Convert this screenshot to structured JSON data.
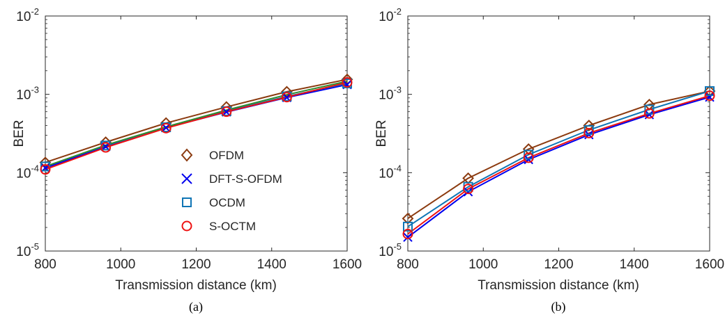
{
  "chart_data": [
    {
      "panel": "(a)",
      "type": "line",
      "xlabel": "Transmission distance (km)",
      "ylabel": "BER",
      "y_scale": "log",
      "xlim": [
        800,
        1600
      ],
      "ylim": [
        1e-05,
        0.01
      ],
      "x_ticks": [
        "800",
        "1000",
        "1200",
        "1400",
        "1600"
      ],
      "y_ticks": [
        "10^-5",
        "10^-4",
        "10^-3",
        "10^-2"
      ],
      "grid": false,
      "legend_position": "lower-right",
      "x": [
        800,
        960,
        1120,
        1280,
        1440,
        1600
      ],
      "series": [
        {
          "name": "OFDM",
          "marker": "diamond",
          "color": "#8B3A0F",
          "values": [
            0.000135,
            0.000245,
            0.00043,
            0.00069,
            0.00108,
            0.00155
          ]
        },
        {
          "name": "DFT-S-OFDM",
          "marker": "x",
          "color": "#0000EE",
          "values": [
            0.000115,
            0.000215,
            0.000375,
            0.000595,
            0.00091,
            0.00133
          ]
        },
        {
          "name": "OCDM",
          "marker": "square",
          "color": "#0F75B5",
          "values": [
            0.00012,
            0.000222,
            0.00038,
            0.00061,
            0.00094,
            0.00138
          ]
        },
        {
          "name": "S-OCTM",
          "marker": "circle",
          "color": "#EE1111",
          "values": [
            0.00011,
            0.00021,
            0.00037,
            0.0006,
            0.00092,
            0.00142
          ]
        },
        {
          "name": "",
          "marker": "none",
          "color": "#2E8B2E",
          "values": [
            0.00012,
            0.000225,
            0.000385,
            0.00063,
            0.00099,
            0.00147
          ]
        }
      ]
    },
    {
      "panel": "(b)",
      "type": "line",
      "xlabel": "Transmission distance (km)",
      "ylabel": "BER",
      "y_scale": "log",
      "xlim": [
        800,
        1600
      ],
      "ylim": [
        1e-05,
        0.01
      ],
      "x_ticks": [
        "800",
        "1000",
        "1200",
        "1400",
        "1600"
      ],
      "y_ticks": [
        "10^-5",
        "10^-4",
        "10^-3",
        "10^-2"
      ],
      "grid": false,
      "x": [
        800,
        960,
        1120,
        1280,
        1440,
        1600
      ],
      "series": [
        {
          "name": "OFDM",
          "marker": "diamond",
          "color": "#8B3A0F",
          "values": [
            2.6e-05,
            8.5e-05,
            0.0002,
            0.0004,
            0.00074,
            0.0011
          ]
        },
        {
          "name": "DFT-S-OFDM",
          "marker": "x",
          "color": "#0000EE",
          "values": [
            1.5e-05,
            5.7e-05,
            0.000147,
            0.000305,
            0.00055,
            0.00092
          ]
        },
        {
          "name": "OCDM",
          "marker": "square",
          "color": "#0F75B5",
          "values": [
            2.05e-05,
            6.6e-05,
            0.00017,
            0.00035,
            0.00064,
            0.0011
          ]
        },
        {
          "name": "S-OCTM",
          "marker": "circle",
          "color": "#EE1111",
          "values": [
            1.65e-05,
            6.2e-05,
            0.000155,
            0.00032,
            0.00057,
            0.00096
          ]
        }
      ]
    }
  ],
  "legend": {
    "items": [
      {
        "label": "OFDM",
        "marker": "diamond",
        "color": "#8B3A0F"
      },
      {
        "label": "DFT-S-OFDM",
        "marker": "x",
        "color": "#0000EE"
      },
      {
        "label": "OCDM",
        "marker": "square",
        "color": "#0F75B5"
      },
      {
        "label": "S-OCTM",
        "marker": "circle",
        "color": "#EE1111"
      }
    ]
  },
  "colors": {
    "axis": "#262626",
    "caption": "#000000"
  }
}
